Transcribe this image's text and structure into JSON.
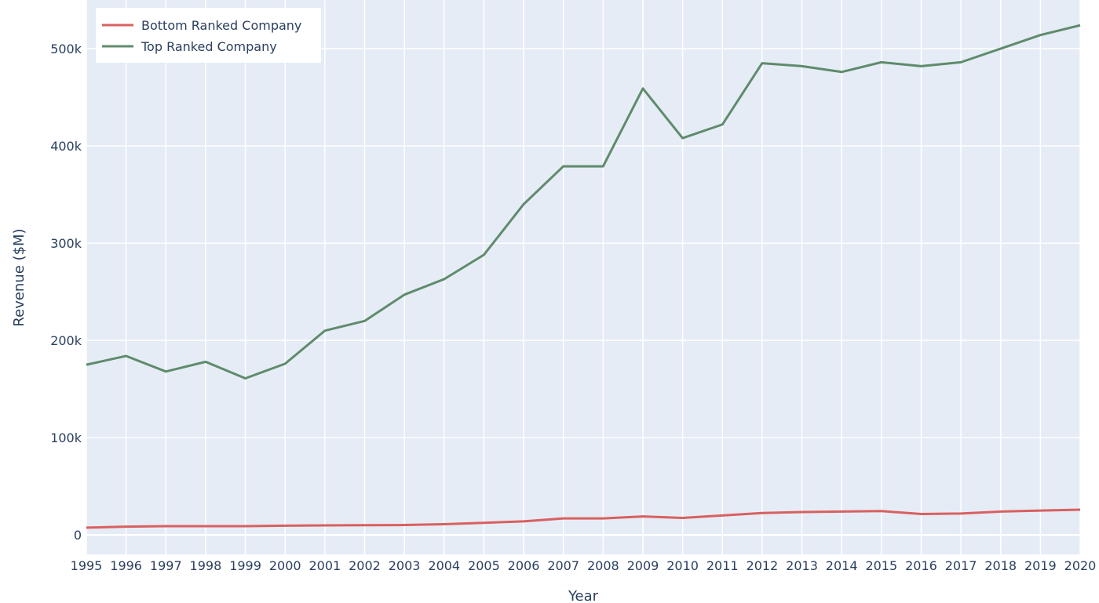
{
  "chart_data": {
    "type": "line",
    "xlabel": "Year",
    "ylabel": "Revenue ($M)",
    "x": [
      1995,
      1996,
      1997,
      1998,
      1999,
      2000,
      2001,
      2002,
      2003,
      2004,
      2005,
      2006,
      2007,
      2008,
      2009,
      2010,
      2011,
      2012,
      2013,
      2014,
      2015,
      2016,
      2017,
      2018,
      2019,
      2020
    ],
    "xlim": [
      1995,
      2020
    ],
    "ylim": [
      -20000,
      550000
    ],
    "y_ticks": [
      0,
      100000,
      200000,
      300000,
      400000,
      500000
    ],
    "y_tick_labels": [
      "0",
      "100k",
      "200k",
      "300k",
      "400k",
      "500k"
    ],
    "grid": true,
    "legend_position": "top-left",
    "series": [
      {
        "name": "Bottom Ranked Company",
        "color": "#d9605f",
        "values": [
          7500,
          8500,
          9000,
          9000,
          9000,
          9500,
          9800,
          10000,
          10200,
          11000,
          12500,
          14000,
          17000,
          17000,
          19000,
          17500,
          20000,
          22500,
          23500,
          24000,
          24500,
          21500,
          22000,
          24000,
          25000,
          26000
        ]
      },
      {
        "name": "Top Ranked Company",
        "color": "#5f8b6b",
        "values": [
          175000,
          184000,
          168000,
          178000,
          161000,
          176000,
          210000,
          220000,
          247000,
          263000,
          288000,
          340000,
          379000,
          379000,
          459000,
          408000,
          422000,
          485000,
          482000,
          476000,
          486000,
          482000,
          486000,
          500000,
          514000,
          524000
        ]
      }
    ]
  }
}
